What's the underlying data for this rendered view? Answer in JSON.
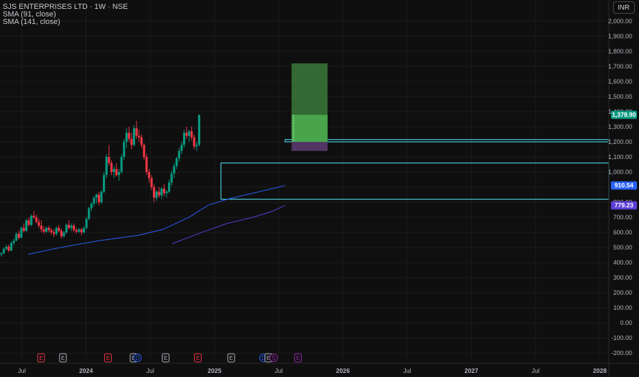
{
  "header": {
    "title": "SJS ENTERPRISES LTD · 1W · NSE",
    "indicators": [
      "SMA (91, close)",
      "SMA (141, close)"
    ],
    "currency": "INR"
  },
  "chart_data": {
    "type": "candlestick",
    "y_axis": {
      "ticks": [
        -200,
        -100,
        0,
        100,
        200,
        300,
        400,
        500,
        600,
        700,
        800,
        900,
        1000,
        1100,
        1200,
        1300,
        1400,
        1500,
        1600,
        1700,
        1800,
        1900,
        2000
      ],
      "tick_labels": [
        "-200.00",
        "-100.00",
        "0.00",
        "100.00",
        "200.00",
        "300.00",
        "400.00",
        "500.00",
        "600.00",
        "700.00",
        "800.00",
        "900.00",
        "1,000.00",
        "1,100.00",
        "1,200.00",
        "1,300.00",
        "1,400.00",
        "1,500.00",
        "1,600.00",
        "1,700.00",
        "1,800.00",
        "1,900.00",
        "2,000.00"
      ],
      "ylim": [
        -240,
        2040
      ]
    },
    "x_axis": {
      "labels": [
        "Jul",
        "2024",
        "Jul",
        "2025",
        "Jul",
        "2026",
        "Jul",
        "2027",
        "Jul",
        "2028"
      ],
      "positions": [
        2023.5,
        2024.0,
        2024.5,
        2025.0,
        2025.5,
        2026.0,
        2026.5,
        2027.0,
        2027.5,
        2028.0
      ],
      "xlim": [
        2023.33,
        2028.07
      ]
    },
    "colors": {
      "up": "#089981",
      "down": "#f23645",
      "sma91": "#2962ff",
      "sma141": "#5b3fd6",
      "zone": "#4dd0e1",
      "target": "#4caf50",
      "stop": "#7b1fa2"
    },
    "candles_ohlc": [
      [
        455,
        470,
        440,
        462
      ],
      [
        462,
        500,
        455,
        490
      ],
      [
        490,
        520,
        480,
        505
      ],
      [
        505,
        520,
        470,
        480
      ],
      [
        480,
        540,
        475,
        530
      ],
      [
        530,
        560,
        515,
        545
      ],
      [
        545,
        600,
        540,
        590
      ],
      [
        590,
        610,
        555,
        565
      ],
      [
        565,
        640,
        560,
        630
      ],
      [
        630,
        660,
        600,
        610
      ],
      [
        610,
        690,
        605,
        680
      ],
      [
        680,
        700,
        640,
        650
      ],
      [
        650,
        720,
        640,
        710
      ],
      [
        710,
        740,
        690,
        700
      ],
      [
        700,
        720,
        660,
        670
      ],
      [
        670,
        690,
        630,
        645
      ],
      [
        645,
        680,
        600,
        620
      ],
      [
        620,
        640,
        590,
        605
      ],
      [
        605,
        640,
        595,
        630
      ],
      [
        630,
        645,
        600,
        615
      ],
      [
        615,
        630,
        585,
        600
      ],
      [
        600,
        620,
        570,
        590
      ],
      [
        590,
        640,
        580,
        630
      ],
      [
        630,
        650,
        600,
        610
      ],
      [
        610,
        625,
        560,
        575
      ],
      [
        575,
        610,
        565,
        600
      ],
      [
        600,
        660,
        590,
        650
      ],
      [
        650,
        680,
        620,
        630
      ],
      [
        630,
        660,
        610,
        645
      ],
      [
        645,
        660,
        600,
        615
      ],
      [
        615,
        630,
        590,
        605
      ],
      [
        605,
        630,
        595,
        620
      ],
      [
        620,
        630,
        580,
        600
      ],
      [
        600,
        640,
        590,
        630
      ],
      [
        630,
        700,
        620,
        690
      ],
      [
        690,
        770,
        680,
        760
      ],
      [
        760,
        800,
        740,
        790
      ],
      [
        790,
        840,
        770,
        830
      ],
      [
        830,
        860,
        790,
        850
      ],
      [
        850,
        870,
        780,
        800
      ],
      [
        800,
        880,
        790,
        870
      ],
      [
        870,
        1000,
        860,
        980
      ],
      [
        980,
        1120,
        960,
        1100
      ],
      [
        1100,
        1180,
        1040,
        1060
      ],
      [
        1060,
        1080,
        980,
        1000
      ],
      [
        1000,
        1040,
        960,
        1020
      ],
      [
        1020,
        1060,
        970,
        980
      ],
      [
        980,
        1020,
        940,
        1000
      ],
      [
        1000,
        1120,
        990,
        1100
      ],
      [
        1100,
        1220,
        1080,
        1200
      ],
      [
        1200,
        1290,
        1160,
        1260
      ],
      [
        1260,
        1300,
        1200,
        1220
      ],
      [
        1220,
        1260,
        1150,
        1180
      ],
      [
        1180,
        1310,
        1170,
        1290
      ],
      [
        1290,
        1340,
        1220,
        1240
      ],
      [
        1240,
        1280,
        1200,
        1230
      ],
      [
        1230,
        1250,
        1160,
        1180
      ],
      [
        1180,
        1190,
        1080,
        1100
      ],
      [
        1100,
        1120,
        980,
        1000
      ],
      [
        1000,
        1020,
        930,
        960
      ],
      [
        960,
        980,
        880,
        900
      ],
      [
        900,
        920,
        800,
        830
      ],
      [
        830,
        880,
        810,
        870
      ],
      [
        870,
        900,
        830,
        845
      ],
      [
        845,
        900,
        820,
        890
      ],
      [
        890,
        920,
        840,
        860
      ],
      [
        860,
        880,
        830,
        870
      ],
      [
        870,
        950,
        860,
        930
      ],
      [
        930,
        1010,
        910,
        990
      ],
      [
        990,
        1060,
        960,
        1040
      ],
      [
        1040,
        1100,
        1020,
        1090
      ],
      [
        1090,
        1160,
        1070,
        1140
      ],
      [
        1140,
        1200,
        1120,
        1180
      ],
      [
        1180,
        1280,
        1160,
        1260
      ],
      [
        1260,
        1300,
        1220,
        1240
      ],
      [
        1240,
        1280,
        1200,
        1270
      ],
      [
        1270,
        1300,
        1210,
        1230
      ],
      [
        1230,
        1250,
        1150,
        1170
      ],
      [
        1170,
        1200,
        1140,
        1180
      ],
      [
        1180,
        1378.9,
        1170,
        1378.9
      ]
    ],
    "candle_x_start": 2023.34,
    "candle_x_step": 0.0195,
    "sma91": {
      "x": [
        2023.55,
        2023.8,
        2024.1,
        2024.4,
        2024.6,
        2024.8,
        2024.95,
        2025.1,
        2025.25,
        2025.4,
        2025.55
      ],
      "y": [
        455,
        500,
        545,
        580,
        620,
        700,
        780,
        820,
        850,
        880,
        910.54
      ]
    },
    "sma141": {
      "x": [
        2024.67,
        2024.9,
        2025.1,
        2025.3,
        2025.45,
        2025.55
      ],
      "y": [
        525,
        600,
        660,
        700,
        740,
        779.23
      ]
    },
    "zones": [
      {
        "x1": 2025.05,
        "y1": 820,
        "y2": 1060
      },
      {
        "x1": 2025.55,
        "y1": 1215,
        "y2": 1200
      }
    ],
    "position": {
      "x0": 2025.6,
      "x1": 2025.88,
      "entry": 1200,
      "target_top": 1720,
      "current": 1378.9,
      "stop": 1140
    },
    "price_badges": [
      {
        "label": "1,378.90",
        "value": 1378.9,
        "color": "#089981"
      },
      {
        "label": "910.54",
        "value": 910.54,
        "color": "#2962ff"
      },
      {
        "label": "779.23",
        "value": 779.23,
        "color": "#5b3fd6"
      }
    ],
    "events": [
      {
        "x": 2023.65,
        "label": "E",
        "color": "#f23645"
      },
      {
        "x": 2023.82,
        "label": "E",
        "color": "#b2b5be"
      },
      {
        "x": 2024.17,
        "label": "E",
        "color": "#f23645"
      },
      {
        "x": 2024.37,
        "label": "E",
        "color": "#b2b5be"
      },
      {
        "x": 2024.4,
        "label": "D",
        "color": "#2962ff"
      },
      {
        "x": 2024.62,
        "label": "E",
        "color": "#b2b5be"
      },
      {
        "x": 2024.87,
        "label": "E",
        "color": "#f23645"
      },
      {
        "x": 2025.13,
        "label": "E",
        "color": "#b2b5be"
      },
      {
        "x": 2025.38,
        "label": "D",
        "color": "#2962ff"
      },
      {
        "x": 2025.42,
        "label": "E",
        "color": "#b2b5be"
      },
      {
        "x": 2025.46,
        "label": "S",
        "color": "#9c27b0"
      },
      {
        "x": 2025.65,
        "label": "E",
        "color": "#9c27b0"
      }
    ]
  }
}
